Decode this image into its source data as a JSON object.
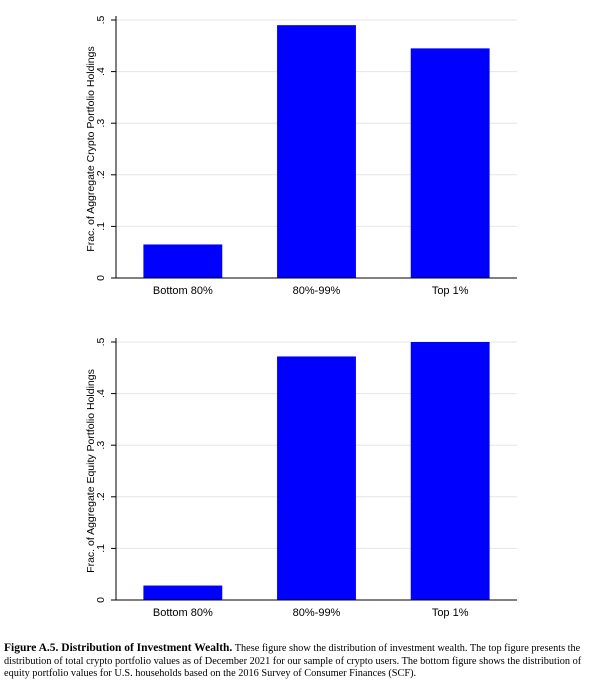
{
  "colors": {
    "bar": "#0000FF",
    "grid": "#e6e6e6",
    "axis": "#000000"
  },
  "chart_data": [
    {
      "type": "bar",
      "categories": [
        "Bottom 80%",
        "80%-99%",
        "Top 1%"
      ],
      "values": [
        0.065,
        0.49,
        0.445
      ],
      "ylabel": "Frac. of Aggregate Crypto Portfolio Holdings",
      "xlabel": "",
      "ylim": [
        0,
        0.5
      ],
      "yticks": [
        0,
        0.1,
        0.2,
        0.3,
        0.4,
        0.5
      ],
      "ytick_labels": [
        "0",
        ".1",
        ".2",
        ".3",
        ".4",
        ".5"
      ],
      "grid": true,
      "legend": "none"
    },
    {
      "type": "bar",
      "categories": [
        "Bottom 80%",
        "80%-99%",
        "Top 1%"
      ],
      "values": [
        0.028,
        0.472,
        0.5
      ],
      "ylabel": "Frac. of Aggregate Equity Portfolio Holdings",
      "xlabel": "",
      "ylim": [
        0,
        0.5
      ],
      "yticks": [
        0,
        0.1,
        0.2,
        0.3,
        0.4,
        0.5
      ],
      "ytick_labels": [
        "0",
        ".1",
        ".2",
        ".3",
        ".4",
        ".5"
      ],
      "grid": true,
      "legend": "none"
    }
  ],
  "caption": {
    "title": "Figure A.5. Distribution of Investment Wealth.",
    "text": " These figure show the distribution of investment wealth. The top figure presents the distribution of total crypto portfolio values as of December 2021 for our sample of crypto users. The bottom figure shows the distribution of equity portfolio values for U.S. households based on the 2016 Survey of Consumer Finances (SCF)."
  }
}
